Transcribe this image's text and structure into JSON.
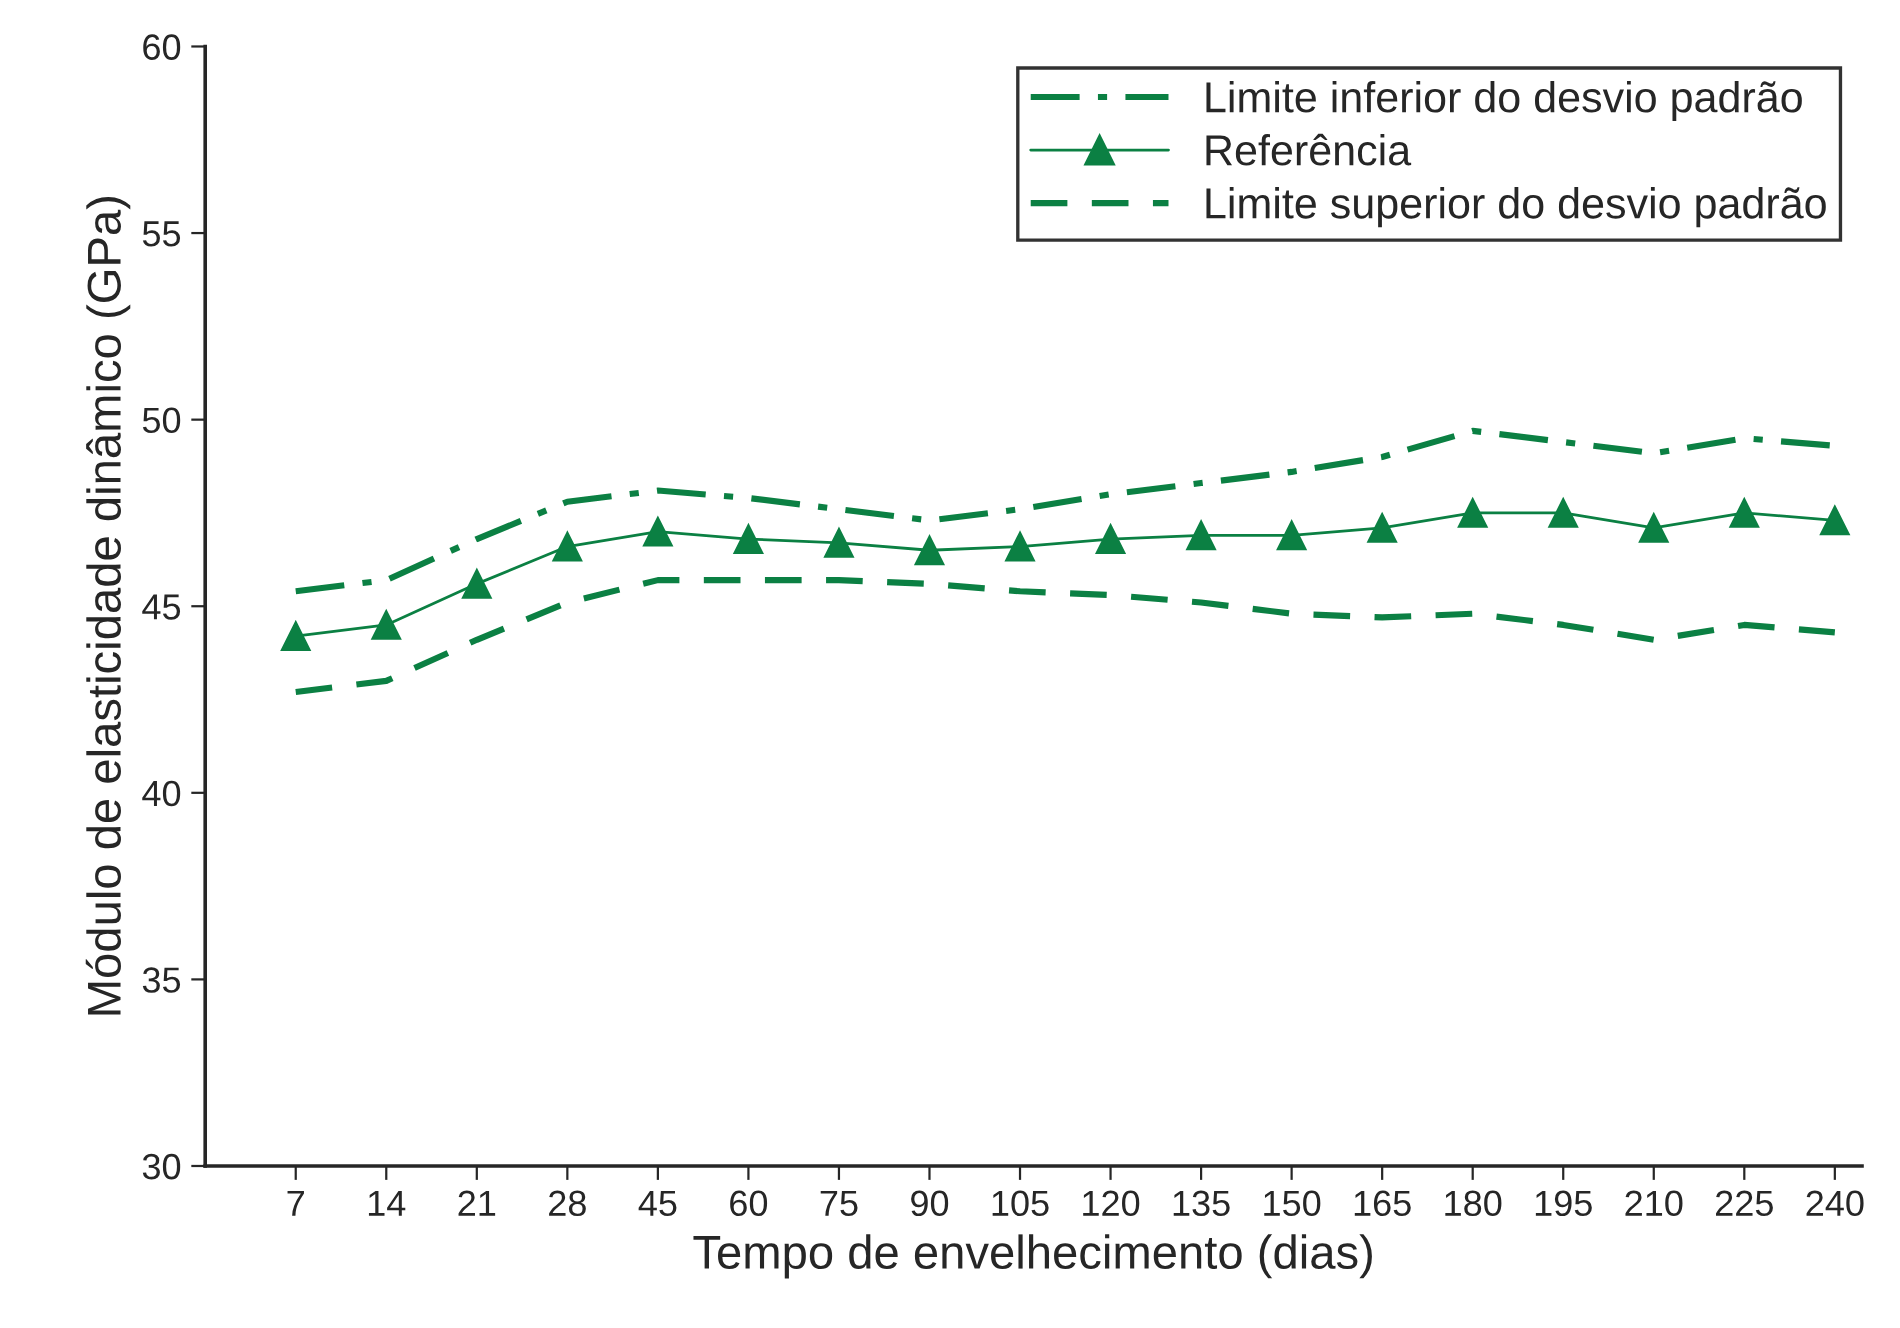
{
  "chart_data": {
    "type": "line",
    "xlabel": "Tempo de envelhecimento (dias)",
    "ylabel": "Módulo de elasticidade dinâmico (GPa)",
    "categories": [
      "7",
      "14",
      "21",
      "28",
      "45",
      "60",
      "75",
      "90",
      "105",
      "120",
      "135",
      "150",
      "165",
      "180",
      "195",
      "210",
      "225",
      "240"
    ],
    "series": [
      {
        "name": "Limite inferior do desvio padrão",
        "color": "#0b8043",
        "line_style": "dashdot",
        "marker": "none",
        "values": [
          45.4,
          45.7,
          46.8,
          47.8,
          48.1,
          47.9,
          47.6,
          47.3,
          47.6,
          48.0,
          48.3,
          48.6,
          49.0,
          49.7,
          49.4,
          49.1,
          49.5,
          49.3
        ]
      },
      {
        "name": "Referência",
        "color": "#0b8043",
        "line_style": "solid",
        "marker": "triangle",
        "values": [
          44.2,
          44.5,
          45.6,
          46.6,
          47.0,
          46.8,
          46.7,
          46.5,
          46.6,
          46.8,
          46.9,
          46.9,
          47.1,
          47.5,
          47.5,
          47.1,
          47.5,
          47.3
        ]
      },
      {
        "name": "Limite superior do desvio padrão",
        "color": "#0b8043",
        "line_style": "dashed",
        "marker": "none",
        "values": [
          42.7,
          43.0,
          44.1,
          45.1,
          45.7,
          45.7,
          45.7,
          45.6,
          45.4,
          45.3,
          45.1,
          44.8,
          44.7,
          44.8,
          44.5,
          44.1,
          44.5,
          44.3
        ]
      }
    ],
    "ylim": [
      30,
      60
    ],
    "yticks": [
      30,
      35,
      40,
      45,
      50,
      55,
      60
    ],
    "grid": false,
    "legend": "top right"
  }
}
